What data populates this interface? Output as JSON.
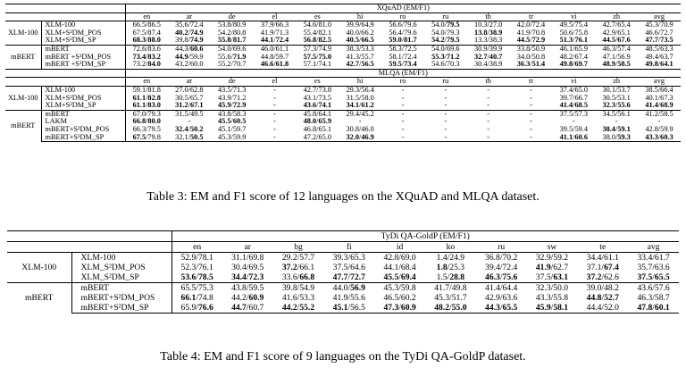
{
  "table3": {
    "xquad_header": "XQuAD (EM/F1)",
    "mlqa_header": "MLQA (EM/F1)",
    "languages": [
      "en",
      "ar",
      "de",
      "el",
      "es",
      "hi",
      "ro",
      "ru",
      "th",
      "tr",
      "vi",
      "zh",
      "avg"
    ],
    "xquad": [
      {
        "group": "XLM-100",
        "rows": [
          {
            "model": "XLM-100",
            "cells": [
              "66.5/86.5",
              "35.6/72.4",
              "53.8/80.9",
              "37.9/66.3",
              "54.6/81.0",
              "39.9/64.9",
              "56.6/79.6",
              "54.0/**79.5**",
              "10.3/27.0",
              "42.0/72.4",
              "49.5/75.4",
              "42.7/65.4",
              "45.3/70.9"
            ]
          },
          {
            "model": "XLM+S²DM_POS",
            "cells": [
              "67.5/87.4",
              "**40.2**/**74.9**",
              "54.2/80.8",
              "41.9/71.3",
              "55.4/82.1",
              "40.0/66.2",
              "56.4/79.6",
              "54.0/79.3",
              "**13.8**/**38.9**",
              "41.9/70.8",
              "50.6/75.8",
              "42.9/65.1",
              "46.6/72.7"
            ]
          },
          {
            "model": "XLM+S²DM_SP",
            "cells": [
              "**68.3**/**88.0**",
              "39.8/**74.9**",
              "**55.8**/**81.7**",
              "**44.1**/**72.4**",
              "**56.8**/**82.5**",
              "**40.5**/**66.5**",
              "**59.0**/**81.7**",
              "**54.2**/**79.5**",
              "13.3/38.3",
              "**44.5**/**72.9**",
              "**51.3**/**76.1**",
              "**44.5**/**67.6**",
              "**47.7**/**73.5**"
            ]
          }
        ]
      },
      {
        "group": "mBERT",
        "rows": [
          {
            "model": "mBERT",
            "cells": [
              "72.6/83.6",
              "44.3/**60.6**",
              "54.0/69.6",
              "46.0/61.1",
              "57.3/74.9",
              "38.3/53.3",
              "58.3/72.5",
              "54.0/69.6",
              "30.9/39.9",
              "33.8/50.9",
              "46.1/65.9",
              "46.3/57.4",
              "48.5/63.3"
            ]
          },
          {
            "model": "mBERT +S²DM_POS",
            "cells": [
              "**73.4**/**83.2**",
              "**44.9**/59.9",
              "55.6/**71.9**",
              "44.8/59.7",
              "**57.5**/**75.0**",
              "41.3/55.7",
              "58.1/72.4",
              "**55.3**/**71.2**",
              "**32.7**/**40.7**",
              "34.0/50.8",
              "48.2/67.4",
              "47.1/56.9",
              "49.4/63.7"
            ]
          },
          {
            "model": "mBERT +S²DM_SP",
            "cells": [
              "73.2/**84.0**",
              "43.2/60.0",
              "55.2/70.7",
              "**46.6**/**61.8**",
              "57.1/74.1",
              "**42.7**/**56.5**",
              "**59.5**/**73.4**",
              "54.6/70.3",
              "30.4/38.9",
              "**36.3**/**51.4**",
              "**49.8**/**69.7**",
              "**48.9**/**58.5**",
              "**49.8**/**64.1**"
            ]
          }
        ]
      }
    ],
    "mlqa": [
      {
        "group": "XLM-100",
        "rows": [
          {
            "model": "XLM-100",
            "cells": [
              "59.1/81.8",
              "27.0/62.8",
              "43.5/71.3",
              "-",
              "42.7/73.8",
              "29.3/56.4",
              "-",
              "-",
              "-",
              "-",
              "37.4/65.0",
              "30.1/53.7",
              "38.5/66.4"
            ]
          },
          {
            "model": "XLM+S²DM_POS",
            "cells": [
              "**61.1**/**82.8**",
              "30.5/65.7",
              "43.9/71.2",
              "-",
              "43.1/73.5",
              "31.5/58.0",
              "-",
              "-",
              "-",
              "-",
              "39.7/66.7",
              "30.5/53.1",
              "40.1/67.3"
            ]
          },
          {
            "model": "XLM+S²DM_SP",
            "cells": [
              "**61.1**/**83.0**",
              "**31.2**/**67.1**",
              "**45.9**/**72.9**",
              "-",
              "**43.6**/**74.1**",
              "**34.1**/**61.2**",
              "-",
              "-",
              "-",
              "-",
              "**41.4**/**68.5**",
              "**32.3**/**55.6**",
              "**41.4**/**68.9**"
            ]
          }
        ]
      },
      {
        "group": "mBERT",
        "rows": [
          {
            "model": "mBERT",
            "cells": [
              "67.0/79.3",
              "31.5/49.5",
              "43.8/58.3",
              "-",
              "45.8/64.1",
              "29.4/45.2",
              "-",
              "-",
              "-",
              "-",
              "37.5/57.3",
              "34.5/56.1",
              "41.2/58.5"
            ]
          },
          {
            "model": "LAKM",
            "cells": [
              "**66.8**/**80.0**",
              "-",
              "**45.5**/**60.5**",
              "-",
              "**48.0**/**65.9**",
              "-",
              "-",
              "-",
              "-",
              "-",
              "-",
              "-",
              "-"
            ]
          },
          {
            "model": "mBERT+S²DM_POS",
            "cells": [
              "66.3/79.5",
              "**32.4**/**50.2**",
              "45.1/59.7",
              "-",
              "46.8/65.1",
              "30.8/46.0",
              "-",
              "-",
              "-",
              "-",
              "39.5/59.4",
              "**38.4**/**59.1**",
              "42.8/59.9"
            ]
          },
          {
            "model": "mBERT+S²DM_SP",
            "cells": [
              "**67.5**/79.8",
              "32.1/**50.5**",
              "45.3/59.9",
              "-",
              "47.2/65.0",
              "**32.0**/**46.9**",
              "-",
              "-",
              "-",
              "-",
              "**41.1**/**60.6**",
              "38.0/**59.3**",
              "**43.3**/**60.3**"
            ]
          }
        ]
      }
    ],
    "caption": "Table 3: EM and F1 score of 12 languages on the XQuAD and MLQA dataset."
  },
  "table4": {
    "header": "TyDi QA-GoldP (EM/F1)",
    "languages": [
      "en",
      "ar",
      "bg",
      "fi",
      "id",
      "ko",
      "ru",
      "sw",
      "te",
      "avg"
    ],
    "groups": [
      {
        "group": "XLM-100",
        "rows": [
          {
            "model": "XLM-100",
            "cells": [
              "52.9/78.1",
              "31.1/69.8",
              "29.2/57.7",
              "39.3/65.3",
              "42.8/69.0",
              "1.4/24.9",
              "36.8/70.2",
              "32.9/59.2",
              "34.4/61.1",
              "33.4/61.7"
            ]
          },
          {
            "model": "XLM_S²DM_POS",
            "cells": [
              "52.3/76.1",
              "30.4/69.5",
              "**37.2**/66.1",
              "37.5/64.6",
              "44.1/68.4",
              "**1.8**/25.3",
              "39.4/72.4",
              "**41.9**/62.7",
              "37.1/**67.4**",
              "35.7/63.6"
            ]
          },
          {
            "model": "XLM_S²DM_SP",
            "cells": [
              "**53.6**/**78.5**",
              "**34.4**/**72.3**",
              "33.6/**66.8**",
              "**47.7**/**72.7**",
              "**45.5**/**69.4**",
              "1.5/**28.8**",
              "**46.3**/**75.6**",
              "37.5/**63.1**",
              "**37.2**/62.6",
              "**37.5**/**65.5**"
            ]
          }
        ]
      },
      {
        "group": "mBERT",
        "rows": [
          {
            "model": "mBERT",
            "cells": [
              "65.5/75.3",
              "43.8/59.5",
              "39.8/54.9",
              "44.0/**56.9**",
              "45.3/59.8",
              "41.7/49.8",
              "41.4/64.4",
              "32.3/50.0",
              "39.0/48.2",
              "43.6/57.6"
            ]
          },
          {
            "model": "mBERT+S²DM_POS",
            "cells": [
              "**66.1**/74.8",
              "44.2/**60.9**",
              "41.6/53.3",
              "41.9/55.6",
              "46.5/60.2",
              "45.3/51.7",
              "42.9/63.6",
              "43.3/55.8",
              "**44.8**/**52.7**",
              "46.3/58.7"
            ]
          },
          {
            "model": "mBERT+S²DM_SP",
            "cells": [
              "65.9/**76.6**",
              "**44.7**/60.7",
              "**44.2**/**55.2**",
              "**45.1**/56.5",
              "**47.3**/**60.9**",
              "**48.2**/**55.0**",
              "**44.3**/**65.5**",
              "**45.9**/**58.1**",
              "44.4/52.0",
              "**47.8**/**60.1**"
            ]
          }
        ]
      }
    ],
    "caption": "Table 4: EM and F1 score of 9 languages on the TyDi QA-GoldP dataset."
  }
}
